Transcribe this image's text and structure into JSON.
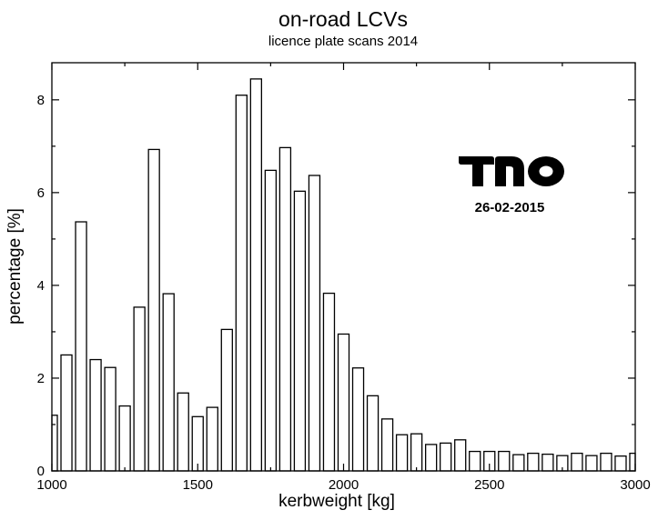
{
  "chart_data": {
    "type": "bar",
    "title": "on-road LCVs",
    "subtitle": "licence plate scans 2014",
    "xlabel": "kerbweight [kg]",
    "ylabel": "percentage [%]",
    "xlim": [
      1000,
      3000
    ],
    "ylim": [
      0,
      8.8
    ],
    "xticks": [
      1000,
      1500,
      2000,
      2500,
      3000
    ],
    "yticks": [
      0,
      2,
      4,
      6,
      8
    ],
    "bin_width": 50,
    "grid": false,
    "legend": "none",
    "bar_fill": "#ffffff",
    "bar_stroke": "#000000",
    "x": [
      1000,
      1050,
      1100,
      1150,
      1200,
      1250,
      1300,
      1350,
      1400,
      1450,
      1500,
      1550,
      1600,
      1650,
      1700,
      1750,
      1800,
      1850,
      1900,
      1950,
      2000,
      2050,
      2100,
      2150,
      2200,
      2250,
      2300,
      2350,
      2400,
      2450,
      2500,
      2550,
      2600,
      2650,
      2700,
      2750,
      2800,
      2850,
      2900,
      2950,
      3000
    ],
    "values": [
      1.2,
      2.5,
      5.37,
      2.4,
      2.23,
      1.4,
      3.53,
      6.93,
      3.82,
      1.68,
      1.17,
      1.37,
      3.05,
      8.1,
      8.45,
      6.48,
      6.97,
      6.03,
      6.37,
      3.83,
      2.95,
      2.22,
      1.62,
      1.12,
      0.78,
      0.8,
      0.57,
      0.6,
      0.67,
      0.42,
      0.42,
      0.42,
      0.35,
      0.38,
      0.36,
      0.33,
      0.38,
      0.33,
      0.38,
      0.32,
      0.38
    ]
  },
  "logo": {
    "text": "TNO",
    "date": "26-02-2015"
  }
}
